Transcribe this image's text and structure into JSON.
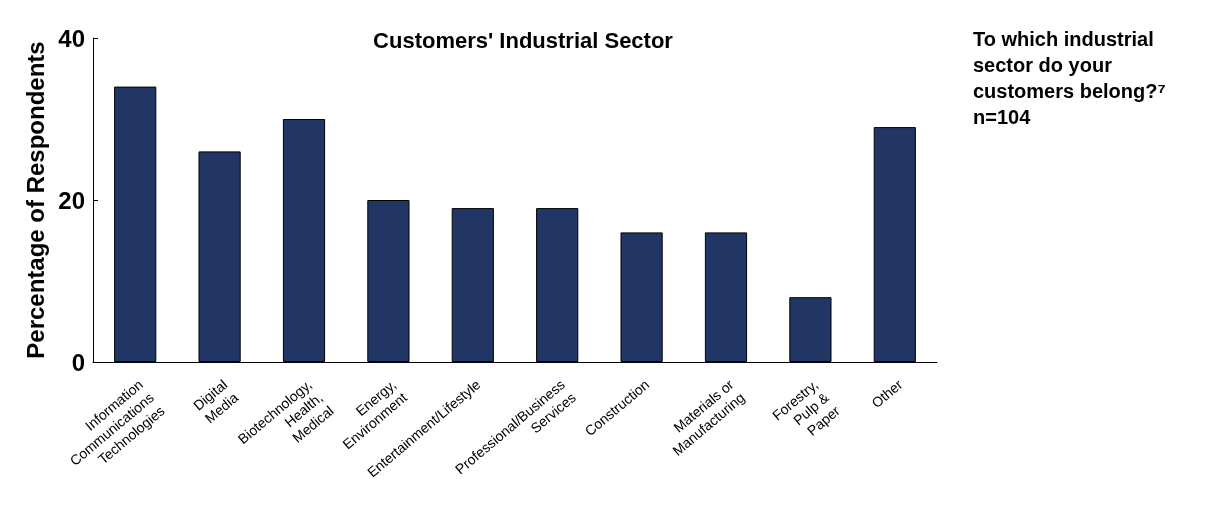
{
  "chart_data": {
    "type": "bar",
    "title": "Customers' Industrial Sector",
    "ylabel": "Percentage of Respondents",
    "categories": [
      "Information\nCommunications\nTechnologies",
      "Digital\nMedia",
      "Biotechnology,\nHealth,\nMedical",
      "Energy,\nEnvironment",
      "Entertainment/Lifestyle",
      "Professional/Business\nServices",
      "Construction",
      "Materials or\nManufacturing",
      "Forestry,\nPulp &\nPaper",
      "Other"
    ],
    "values": [
      34,
      26,
      30,
      20,
      19,
      19,
      16,
      16,
      8,
      29
    ],
    "color": "#223666",
    "ylim": [
      0,
      40
    ],
    "yticks": [
      0,
      20,
      40
    ],
    "grid": false,
    "annotations": [
      "To which industrial sector do your customers belong?⁷\nn=104"
    ]
  }
}
